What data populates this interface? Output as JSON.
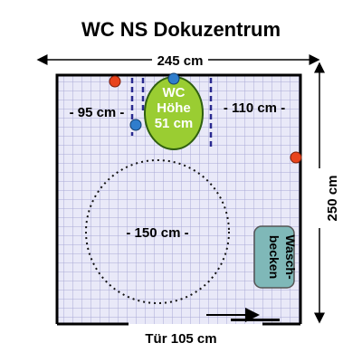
{
  "title": "WC NS Dokuzentrum",
  "dimensions": {
    "width": "245 cm",
    "depth": "250 cm",
    "door": "Tür 105 cm",
    "left_clearance": "- 95 cm -",
    "right_clearance": "- 110 cm -",
    "turning_circle": "- 150 cm -"
  },
  "toilet": {
    "line1": "WC",
    "line2": "Höhe",
    "line3": "51 cm"
  },
  "sink": {
    "line1": "Wasch-",
    "line2": "becken"
  },
  "colors": {
    "wall": "#000000",
    "floor_tile": "#e9e9f8",
    "grid_line": "#a9a9d6",
    "toilet_fill": "#9acd32",
    "toilet_border": "#2f5f10",
    "sink_fill": "#7fb8b8",
    "sink_border": "#555555",
    "grab_bar": "#2a2a90",
    "red_dot": "#e8431c",
    "blue_dot": "#2f7dcc",
    "circle": "#000000"
  },
  "icons": [
    "toilet-icon",
    "sink-icon",
    "door-icon",
    "red-dot-icon",
    "blue-dot-icon",
    "grab-bar-icon"
  ]
}
